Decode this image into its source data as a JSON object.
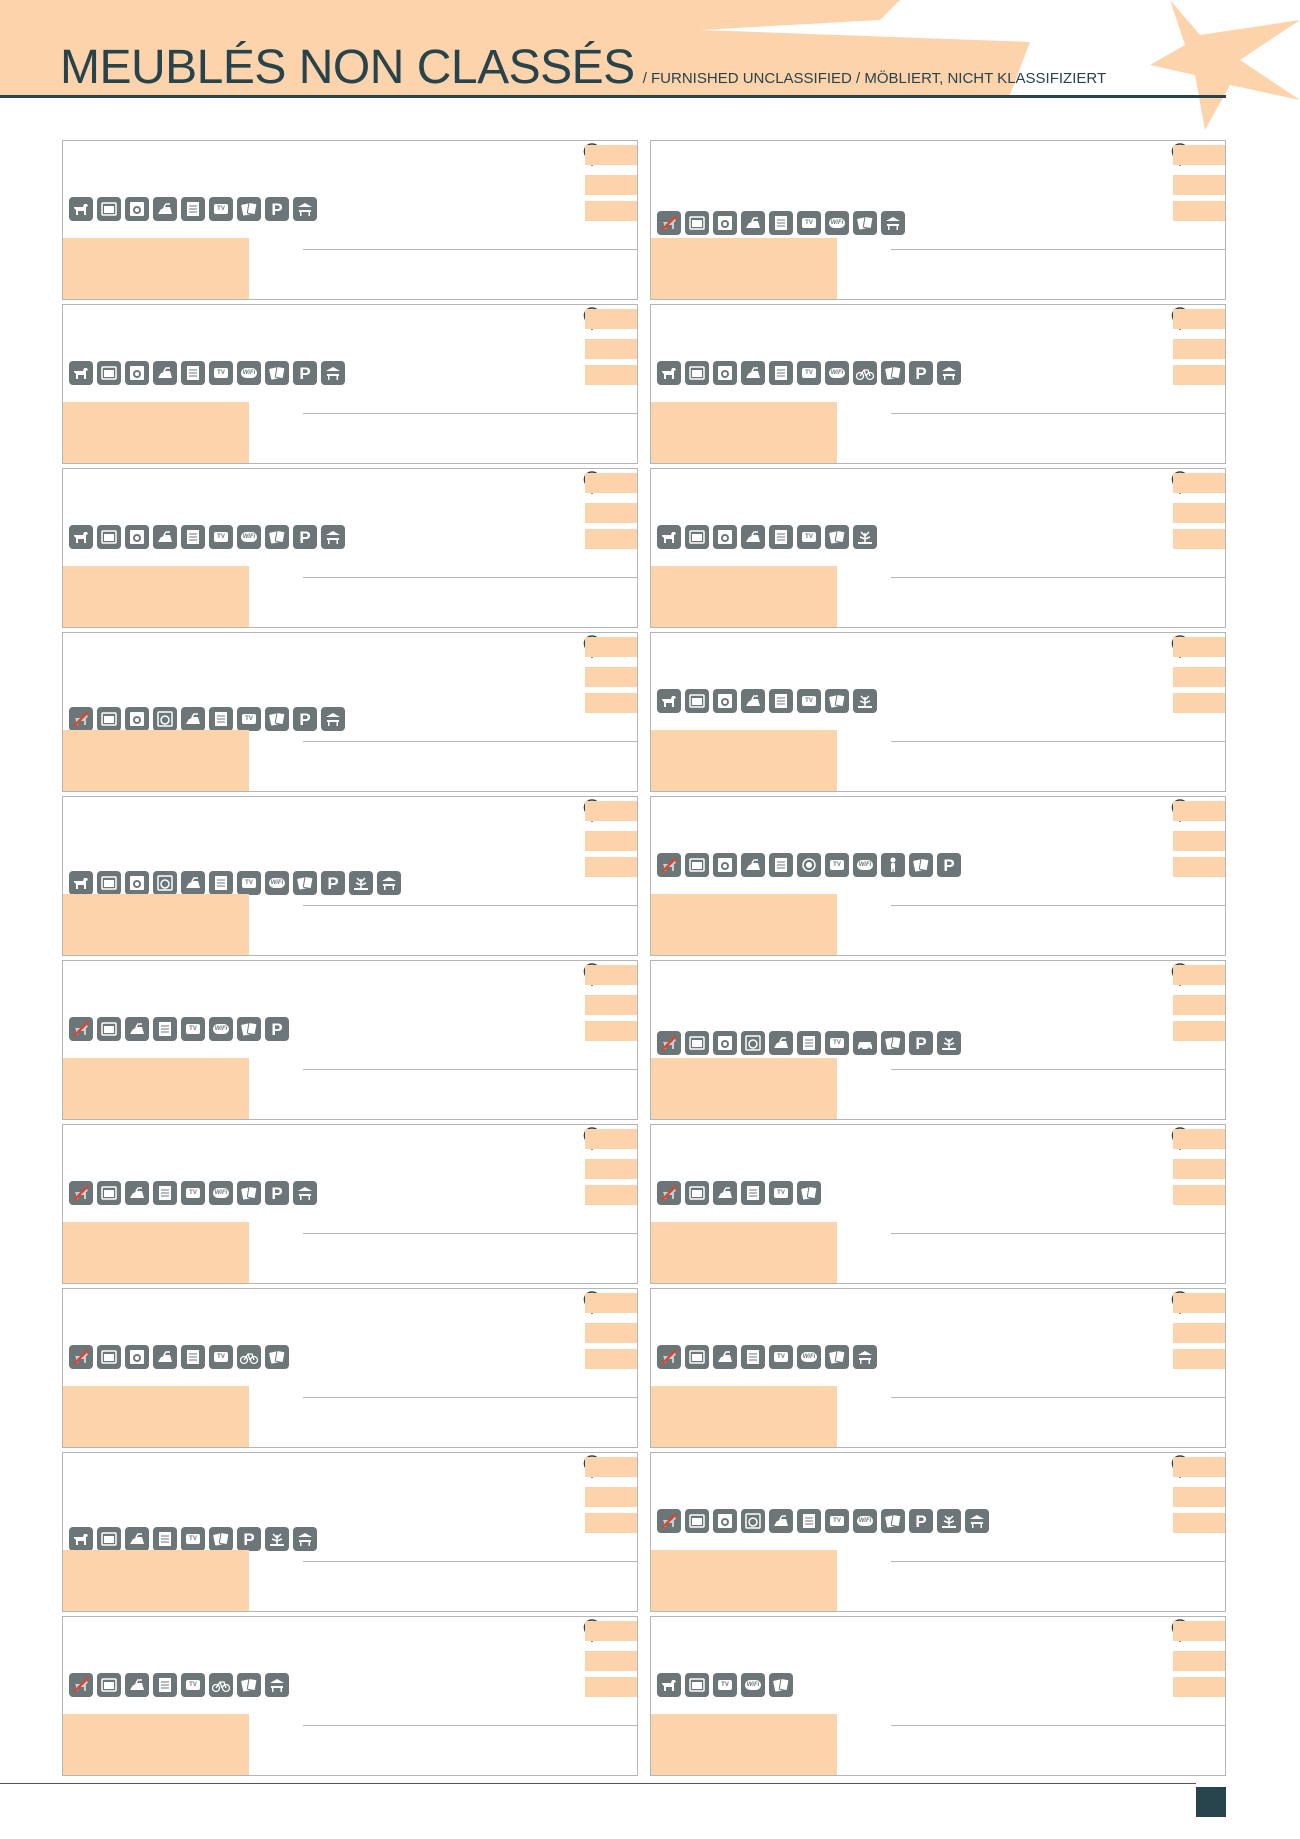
{
  "header": {
    "title": "MEUBLÉS NON CLASSÉS",
    "subtitle": "/ FURNISHED UNCLASSIFIED / MÖBLIERT, NICHT KLASSIFIZIERT"
  },
  "colors": {
    "accent": "#fcd3aa",
    "dark": "#27434c",
    "icon": "#6c7678",
    "border": "#b5b5b5"
  },
  "listings": [
    {
      "icons": [
        "dog-icon",
        "oven-icon",
        "washing-machine-icon",
        "iron-icon",
        "dishwasher-icon",
        "tv-icon",
        "cards-icon",
        "parking-icon",
        "terrace-icon"
      ]
    },
    {
      "icons": [
        "no-pets-icon",
        "oven-icon",
        "washing-machine-icon",
        "iron-icon",
        "dishwasher-icon",
        "tv-icon",
        "wifi-icon",
        "cards-icon",
        "terrace-icon"
      ]
    },
    {
      "icons": [
        "dog-icon",
        "oven-icon",
        "washing-machine-icon",
        "iron-icon",
        "dishwasher-icon",
        "tv-icon",
        "wifi-icon",
        "cards-icon",
        "parking-icon",
        "terrace-icon"
      ]
    },
    {
      "icons": [
        "dog-icon",
        "oven-icon",
        "washing-machine-icon",
        "iron-icon",
        "dishwasher-icon",
        "tv-icon",
        "wifi-icon",
        "bicycle-icon",
        "cards-icon",
        "parking-icon",
        "terrace-icon"
      ]
    },
    {
      "icons": [
        "dog-icon",
        "oven-icon",
        "washing-machine-icon",
        "iron-icon",
        "dishwasher-icon",
        "tv-icon",
        "wifi-icon",
        "cards-icon",
        "parking-icon",
        "terrace-icon"
      ]
    },
    {
      "icons": [
        "dog-icon",
        "oven-icon",
        "washing-machine-icon",
        "iron-icon",
        "dishwasher-icon",
        "tv-icon",
        "cards-icon",
        "garden-icon"
      ]
    },
    {
      "icons": [
        "no-pets-icon",
        "oven-icon",
        "washing-machine-icon",
        "dryer-icon",
        "iron-icon",
        "dishwasher-icon",
        "tv-icon",
        "cards-icon",
        "parking-icon",
        "terrace-icon"
      ]
    },
    {
      "icons": [
        "dog-icon",
        "oven-icon",
        "washing-machine-icon",
        "iron-icon",
        "dishwasher-icon",
        "tv-icon",
        "cards-icon",
        "garden-icon"
      ]
    },
    {
      "icons": [
        "dog-icon",
        "oven-icon",
        "washing-machine-icon",
        "dryer-icon",
        "iron-icon",
        "dishwasher-icon",
        "tv-icon",
        "wifi-icon",
        "cards-icon",
        "parking-icon",
        "garden-icon",
        "terrace-icon"
      ]
    },
    {
      "icons": [
        "no-pets-icon",
        "oven-icon",
        "washing-machine-icon",
        "iron-icon",
        "dishwasher-icon",
        "globe-icon",
        "tv-icon",
        "wifi-icon",
        "baby-icon",
        "cards-icon",
        "parking-icon"
      ]
    },
    {
      "icons": [
        "no-pets-icon",
        "oven-icon",
        "iron-icon",
        "dishwasher-icon",
        "tv-icon",
        "wifi-icon",
        "cards-icon",
        "parking-icon"
      ]
    },
    {
      "icons": [
        "no-pets-icon",
        "oven-icon",
        "washing-machine-icon",
        "dryer-icon",
        "iron-icon",
        "dishwasher-icon",
        "tv-icon",
        "car-icon",
        "cards-icon",
        "parking-icon",
        "garden-icon"
      ]
    },
    {
      "icons": [
        "no-pets-icon",
        "oven-icon",
        "iron-icon",
        "dishwasher-icon",
        "tv-icon",
        "wifi-icon",
        "cards-icon",
        "parking-icon",
        "terrace-icon"
      ]
    },
    {
      "icons": [
        "no-pets-icon",
        "oven-icon",
        "iron-icon",
        "dishwasher-icon",
        "tv-icon",
        "cards-icon"
      ]
    },
    {
      "icons": [
        "no-pets-icon",
        "oven-icon",
        "washing-machine-icon",
        "iron-icon",
        "dishwasher-icon",
        "tv-icon",
        "bicycle-icon",
        "cards-icon"
      ]
    },
    {
      "icons": [
        "no-pets-icon",
        "oven-icon",
        "iron-icon",
        "dishwasher-icon",
        "tv-icon",
        "wifi-icon",
        "cards-icon",
        "terrace-icon"
      ]
    },
    {
      "icons": [
        "dog-icon",
        "oven-icon",
        "iron-icon",
        "dishwasher-icon",
        "tv-icon",
        "cards-icon",
        "parking-icon",
        "garden-icon",
        "terrace-icon"
      ]
    },
    {
      "icons": [
        "no-pets-icon",
        "oven-icon",
        "washing-machine-icon",
        "dryer-icon",
        "iron-icon",
        "dishwasher-icon",
        "tv-icon",
        "wifi-icon",
        "cards-icon",
        "parking-icon",
        "garden-icon",
        "terrace-icon"
      ]
    },
    {
      "icons": [
        "no-pets-icon",
        "oven-icon",
        "iron-icon",
        "dishwasher-icon",
        "tv-icon",
        "bicycle-icon",
        "cards-icon",
        "terrace-icon"
      ]
    },
    {
      "icons": [
        "dog-icon",
        "oven-icon",
        "tv-icon",
        "wifi-icon",
        "cards-icon"
      ]
    }
  ]
}
